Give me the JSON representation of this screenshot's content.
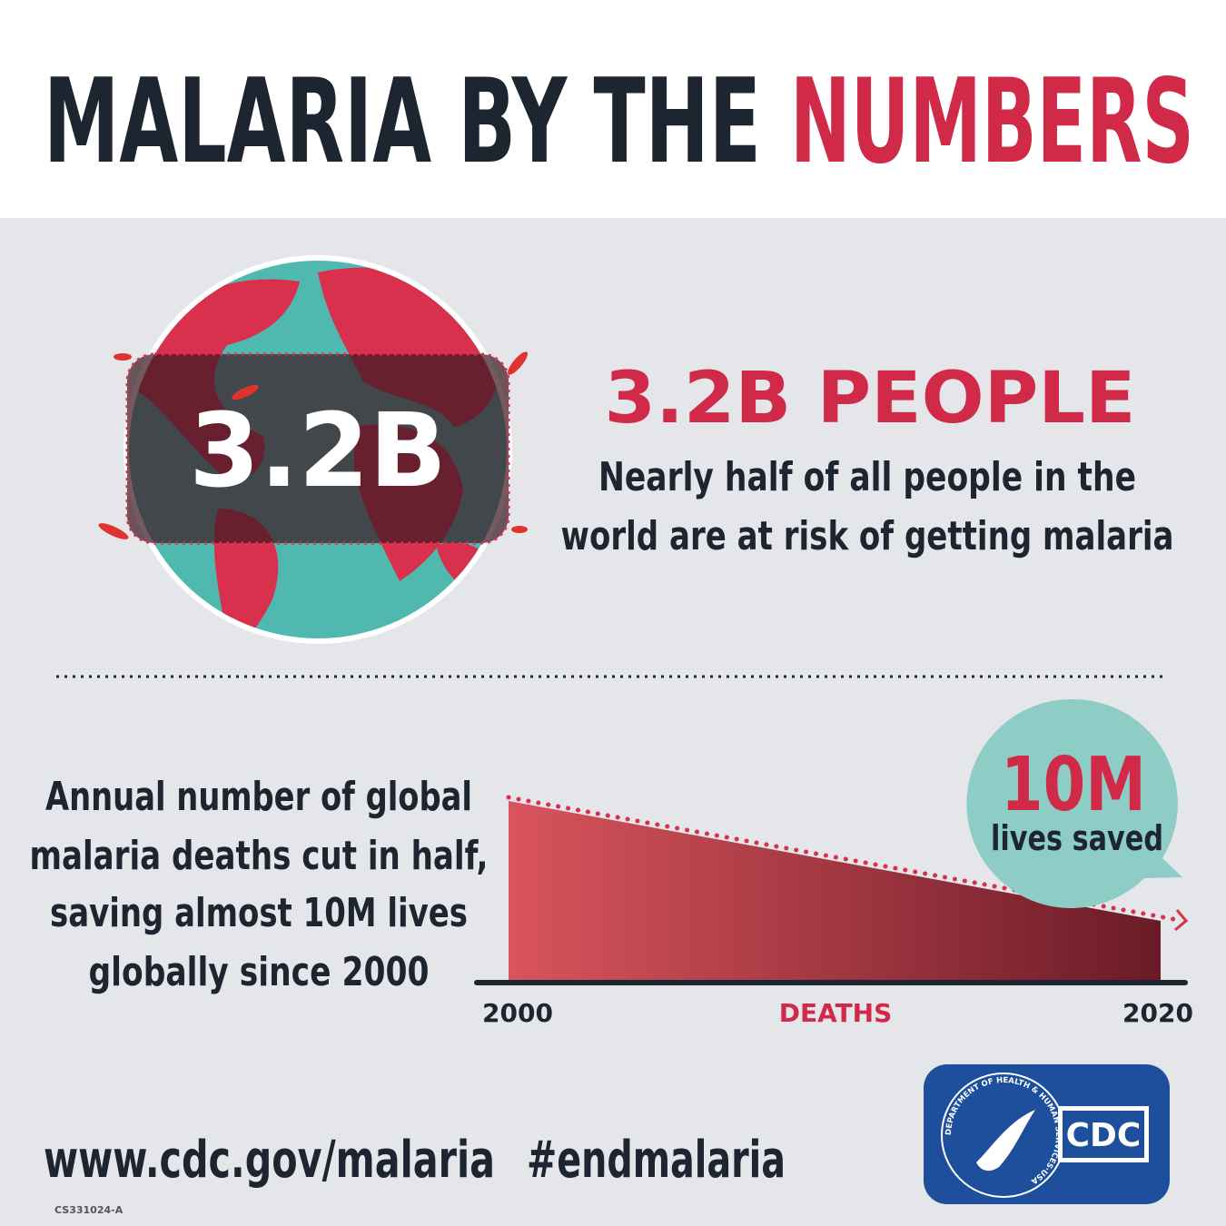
{
  "header": {
    "title": "MALARIA BY THE",
    "title_highlight": "NUMBERS"
  },
  "risk": {
    "globe_label": "3.2B",
    "heading": "3.2B PEOPLE",
    "description": [
      "Nearly half of all people in the",
      "world are at risk of getting malaria"
    ]
  },
  "deaths": {
    "description": [
      "Annual number of global",
      "malaria deaths cut in half,",
      "saving almost 10M lives",
      "globally since 2000"
    ],
    "callout_value": "10M",
    "callout_text": "lives saved",
    "axis": {
      "start": "2000",
      "label": "DEATHS",
      "end": "2020"
    }
  },
  "footer": {
    "url": "www.cdc.gov/malaria",
    "hashtag": "#endmalaria",
    "code": "CS331024-A",
    "logo": {
      "seal": "DEPARTMENT OF HEALTH & HUMAN SERVICES·USA",
      "text": "CDC"
    }
  }
}
